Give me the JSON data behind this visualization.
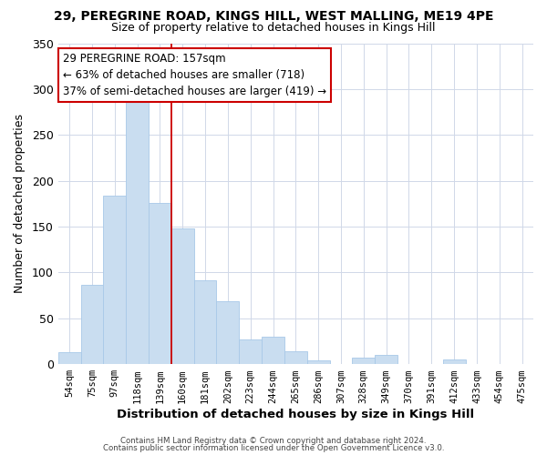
{
  "title": "29, PEREGRINE ROAD, KINGS HILL, WEST MALLING, ME19 4PE",
  "subtitle": "Size of property relative to detached houses in Kings Hill",
  "xlabel": "Distribution of detached houses by size in Kings Hill",
  "ylabel": "Number of detached properties",
  "bar_labels": [
    "54sqm",
    "75sqm",
    "97sqm",
    "118sqm",
    "139sqm",
    "160sqm",
    "181sqm",
    "202sqm",
    "223sqm",
    "244sqm",
    "265sqm",
    "286sqm",
    "307sqm",
    "328sqm",
    "349sqm",
    "370sqm",
    "391sqm",
    "412sqm",
    "433sqm",
    "454sqm",
    "475sqm"
  ],
  "bar_values": [
    13,
    87,
    184,
    288,
    176,
    148,
    91,
    69,
    27,
    30,
    14,
    4,
    0,
    7,
    10,
    0,
    0,
    5,
    0,
    0,
    0
  ],
  "bar_color": "#c9ddf0",
  "bar_edge_color": "#a8c8e8",
  "vline_color": "#cc0000",
  "ylim": [
    0,
    350
  ],
  "yticks": [
    0,
    50,
    100,
    150,
    200,
    250,
    300,
    350
  ],
  "annotation_line1": "29 PEREGRINE ROAD: 157sqm",
  "annotation_line2": "← 63% of detached houses are smaller (718)",
  "annotation_line3": "37% of semi-detached houses are larger (419) →",
  "annotation_box_color": "#ffffff",
  "annotation_box_edge": "#cc0000",
  "footer_line1": "Contains HM Land Registry data © Crown copyright and database right 2024.",
  "footer_line2": "Contains public sector information licensed under the Open Government Licence v3.0.",
  "background_color": "#ffffff",
  "grid_color": "#d0d8e8",
  "title_fontsize": 10,
  "subtitle_fontsize": 9,
  "vline_bar_index": 4.5
}
